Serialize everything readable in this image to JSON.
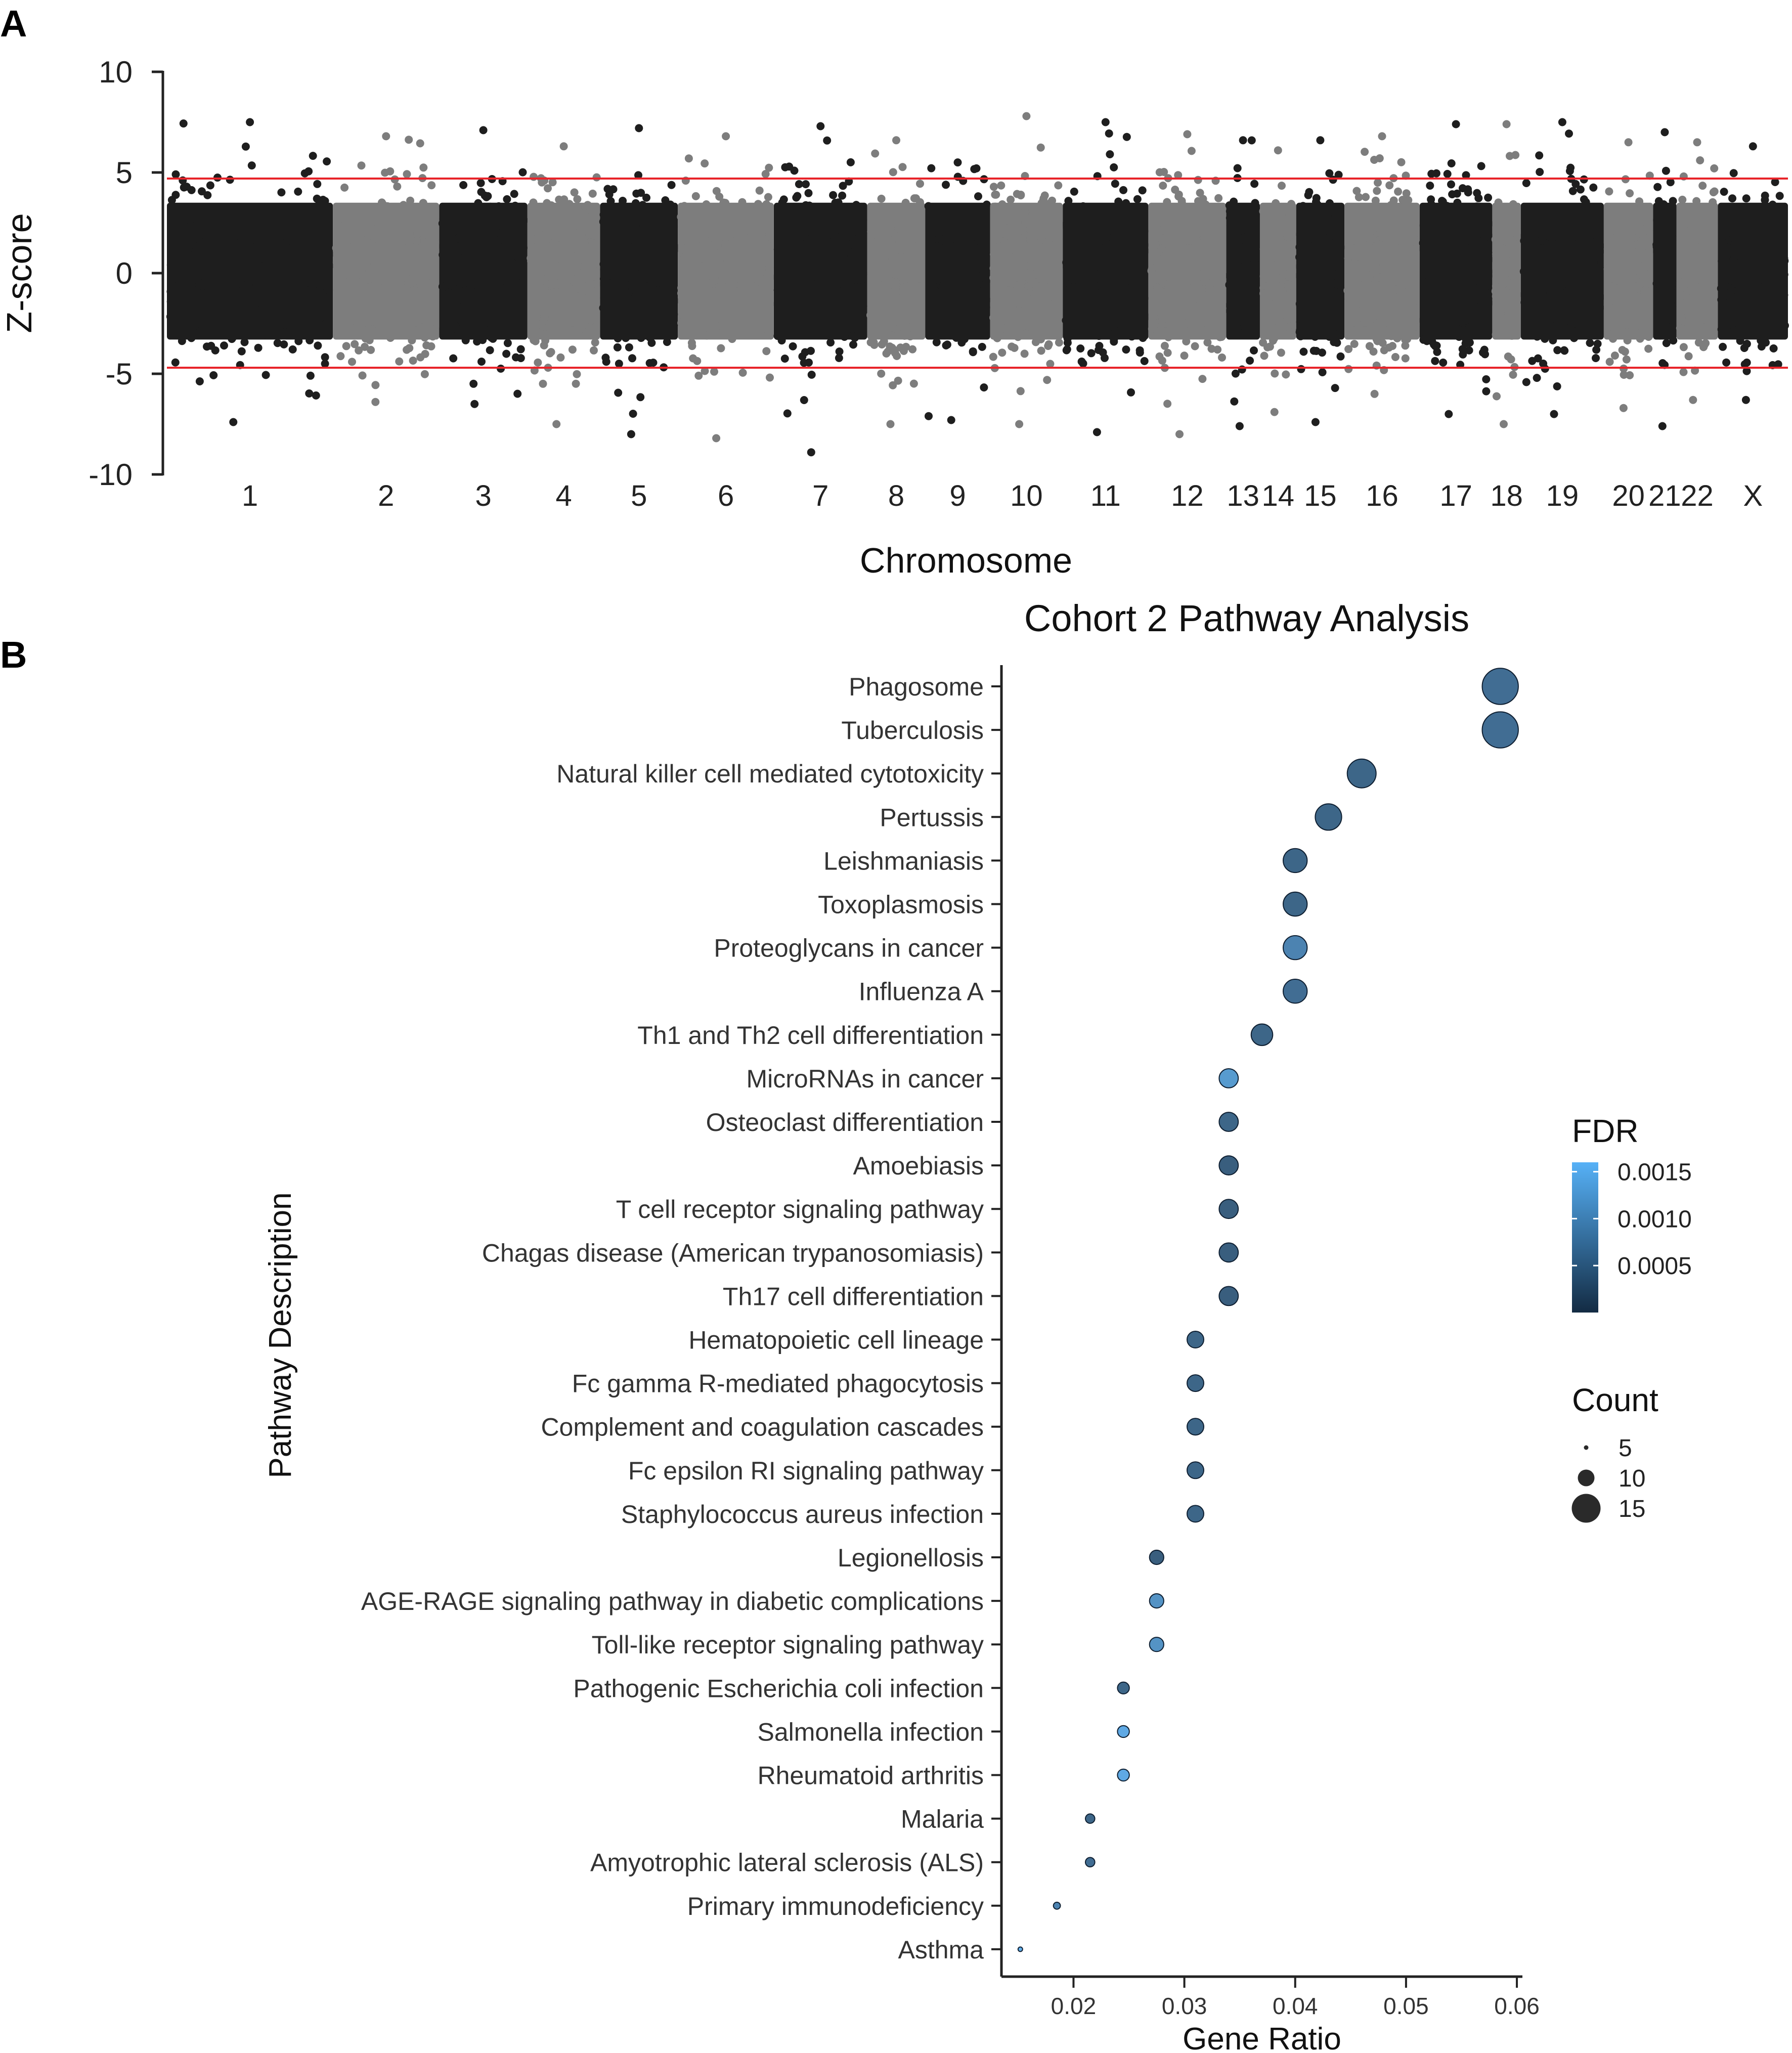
{
  "panels": {
    "a_label": "A",
    "b_label": "B"
  },
  "colors": {
    "dark_points": "#1e1e1e",
    "light_points": "#7d7d7d",
    "threshold_line": "#e8242a",
    "axis": "#222222",
    "fdr_low": "#132b43",
    "fdr_high": "#56b1f7"
  },
  "chart_data": [
    {
      "type": "scatter",
      "subtype": "manhattan",
      "title": "",
      "xlabel": "Chromosome",
      "ylabel": "Z-score",
      "ylim": [
        -10,
        10
      ],
      "yticks": [
        10,
        5,
        0,
        -5,
        -10
      ],
      "threshold_lines": [
        4.7,
        -4.7
      ],
      "grid": false,
      "chromosomes": [
        "1",
        "2",
        "3",
        "4",
        "5",
        "6",
        "7",
        "8",
        "9",
        "10",
        "11",
        "12",
        "13",
        "14",
        "15",
        "16",
        "17",
        "18",
        "19",
        "20",
        "21",
        "22",
        "X"
      ],
      "chromosome_shade": [
        "dark",
        "light",
        "dark",
        "light",
        "dark",
        "light",
        "dark",
        "light",
        "dark",
        "light",
        "dark",
        "light",
        "dark",
        "light",
        "dark",
        "light",
        "dark",
        "light",
        "dark",
        "light",
        "dark",
        "light",
        "dark"
      ],
      "z_max": [
        7.5,
        6.8,
        7.1,
        6.3,
        7.2,
        6.8,
        7.3,
        6.6,
        5.5,
        7.8,
        7.5,
        6.9,
        6.6,
        6.1,
        6.6,
        6.8,
        7.4,
        7.4,
        7.5,
        6.5,
        7.0,
        6.5,
        6.3
      ],
      "z_min": [
        -7.4,
        -6.4,
        -6.5,
        -7.5,
        -8.0,
        -8.2,
        -8.9,
        -7.5,
        -7.3,
        -7.5,
        -7.9,
        -8.0,
        -7.6,
        -6.9,
        -7.4,
        -6.0,
        -7.0,
        -7.5,
        -7.0,
        -6.7,
        -7.6,
        -6.3,
        -6.3
      ]
    },
    {
      "type": "scatter",
      "subtype": "dot-plot",
      "title": "Cohort 2 Pathway Analysis",
      "xlabel": "Gene Ratio",
      "ylabel": "Pathway Description",
      "xlim": [
        0.0135,
        0.0605
      ],
      "xticks": [
        0.02,
        0.03,
        0.04,
        0.05,
        0.06
      ],
      "xtick_labels": [
        "0.02",
        "0.03",
        "0.04",
        "0.05",
        "0.06"
      ],
      "grid": false,
      "legend_position": "right",
      "color_legend": {
        "title": "FDR",
        "min": 0.0,
        "max": 0.0016,
        "ticks": [
          0.0015,
          0.001,
          0.0005
        ],
        "tick_labels": [
          "0.0015",
          "0.0010",
          "0.0005"
        ]
      },
      "size_legend": {
        "title": "Count",
        "values": [
          5,
          10,
          15
        ],
        "labels": [
          "5",
          "10",
          "15"
        ]
      },
      "pathways": [
        {
          "name": "Phagosome",
          "gene_ratio": 0.0585,
          "count": 18,
          "fdr": 0.0006
        },
        {
          "name": "Tuberculosis",
          "gene_ratio": 0.0585,
          "count": 18,
          "fdr": 0.0006
        },
        {
          "name": "Natural killer cell mediated cytotoxicity",
          "gene_ratio": 0.046,
          "count": 15,
          "fdr": 0.0005
        },
        {
          "name": "Pertussis",
          "gene_ratio": 0.043,
          "count": 14,
          "fdr": 0.0005
        },
        {
          "name": "Leishmaniasis",
          "gene_ratio": 0.04,
          "count": 13,
          "fdr": 0.0005
        },
        {
          "name": "Toxoplasmosis",
          "gene_ratio": 0.04,
          "count": 13,
          "fdr": 0.0005
        },
        {
          "name": "Proteoglycans in cancer",
          "gene_ratio": 0.04,
          "count": 13,
          "fdr": 0.0009
        },
        {
          "name": "Influenza A",
          "gene_ratio": 0.04,
          "count": 13,
          "fdr": 0.0006
        },
        {
          "name": "Th1 and Th2 cell differentiation",
          "gene_ratio": 0.037,
          "count": 12,
          "fdr": 0.0005
        },
        {
          "name": "MicroRNAs in cancer",
          "gene_ratio": 0.034,
          "count": 11,
          "fdr": 0.0012
        },
        {
          "name": "Osteoclast differentiation",
          "gene_ratio": 0.034,
          "count": 11,
          "fdr": 0.0005
        },
        {
          "name": "Amoebiasis",
          "gene_ratio": 0.034,
          "count": 11,
          "fdr": 0.0004
        },
        {
          "name": "T cell receptor signaling pathway",
          "gene_ratio": 0.034,
          "count": 11,
          "fdr": 0.0004
        },
        {
          "name": "Chagas disease (American trypanosomiasis)",
          "gene_ratio": 0.034,
          "count": 11,
          "fdr": 0.0004
        },
        {
          "name": "Th17 cell differentiation",
          "gene_ratio": 0.034,
          "count": 11,
          "fdr": 0.0004
        },
        {
          "name": "Hematopoietic cell lineage",
          "gene_ratio": 0.031,
          "count": 10,
          "fdr": 0.0005
        },
        {
          "name": "Fc gamma R-mediated phagocytosis",
          "gene_ratio": 0.031,
          "count": 10,
          "fdr": 0.0005
        },
        {
          "name": "Complement and coagulation cascades",
          "gene_ratio": 0.031,
          "count": 10,
          "fdr": 0.0005
        },
        {
          "name": "Fc epsilon RI signaling pathway",
          "gene_ratio": 0.031,
          "count": 10,
          "fdr": 0.0005
        },
        {
          "name": "Staphylococcus aureus infection",
          "gene_ratio": 0.031,
          "count": 10,
          "fdr": 0.0005
        },
        {
          "name": "Legionellosis",
          "gene_ratio": 0.0275,
          "count": 9,
          "fdr": 0.0004
        },
        {
          "name": "AGE-RAGE signaling pathway in diabetic complications",
          "gene_ratio": 0.0275,
          "count": 9,
          "fdr": 0.0011
        },
        {
          "name": "Toll-like receptor signaling pathway",
          "gene_ratio": 0.0275,
          "count": 9,
          "fdr": 0.0011
        },
        {
          "name": "Pathogenic Escherichia coli infection",
          "gene_ratio": 0.0245,
          "count": 8,
          "fdr": 0.0005
        },
        {
          "name": "Salmonella infection",
          "gene_ratio": 0.0245,
          "count": 8,
          "fdr": 0.0014
        },
        {
          "name": "Rheumatoid arthritis",
          "gene_ratio": 0.0245,
          "count": 8,
          "fdr": 0.0014
        },
        {
          "name": "Malaria",
          "gene_ratio": 0.0215,
          "count": 7,
          "fdr": 0.0005
        },
        {
          "name": "Amyotrophic lateral sclerosis (ALS)",
          "gene_ratio": 0.0215,
          "count": 7,
          "fdr": 0.0006
        },
        {
          "name": "Primary immunodeficiency",
          "gene_ratio": 0.0185,
          "count": 6,
          "fdr": 0.0009
        },
        {
          "name": "Asthma",
          "gene_ratio": 0.0152,
          "count": 5,
          "fdr": 0.0015
        }
      ]
    }
  ]
}
